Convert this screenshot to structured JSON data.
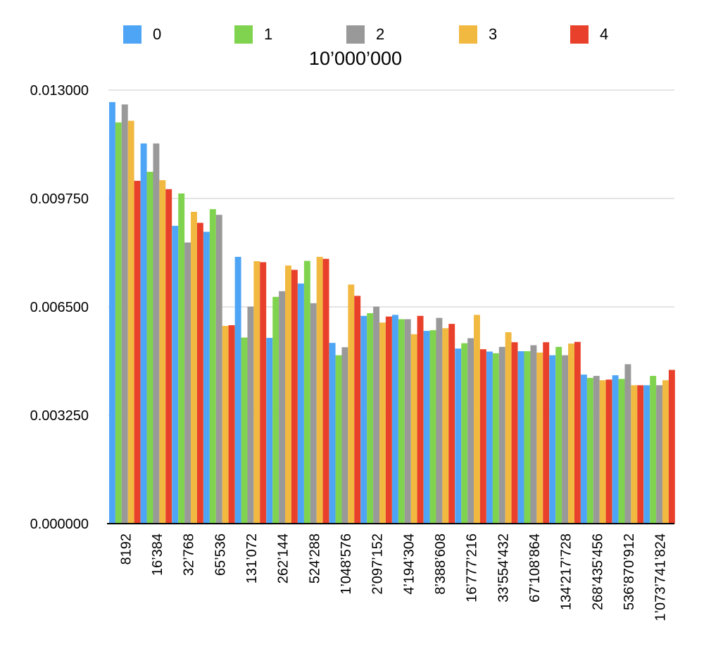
{
  "chart_data": {
    "type": "bar",
    "title": "10’000’000",
    "legend_position": "top",
    "grid": true,
    "ylim": [
      0,
      0.013
    ],
    "yticks": [
      "0.000000",
      "0.003250",
      "0.006500",
      "0.009750",
      "0.013000"
    ],
    "categories": [
      "8192",
      "16’384",
      "32’768",
      "65’536",
      "131’072",
      "262’144",
      "524’288",
      "1’048’576",
      "2’097’152",
      "4’194’304",
      "8’388’608",
      "16’777’216",
      "33’554’432",
      "67’108’864",
      "134’217’728",
      "268’435’456",
      "536’870’912",
      "1’073’741’824"
    ],
    "series": [
      {
        "name": "0",
        "color": "#4ea5f5",
        "values": [
          0.01264,
          0.0114,
          0.00893,
          0.00875,
          0.008,
          0.00557,
          0.0072,
          0.00542,
          0.00623,
          0.00626,
          0.00578,
          0.00525,
          0.00516,
          0.00517,
          0.00505,
          0.00447,
          0.00445,
          0.00415
        ]
      },
      {
        "name": "1",
        "color": "#7fd34e",
        "values": [
          0.01203,
          0.01055,
          0.0099,
          0.00943,
          0.00558,
          0.0068,
          0.00788,
          0.00505,
          0.00631,
          0.00613,
          0.0058,
          0.00541,
          0.00511,
          0.00517,
          0.0053,
          0.00437,
          0.00434,
          0.00443
        ]
      },
      {
        "name": "2",
        "color": "#999999",
        "values": [
          0.01257,
          0.0114,
          0.00843,
          0.00926,
          0.00651,
          0.00697,
          0.00661,
          0.00529,
          0.00651,
          0.00613,
          0.00617,
          0.00556,
          0.0053,
          0.00535,
          0.00505,
          0.00443,
          0.00478,
          0.00415
        ]
      },
      {
        "name": "3",
        "color": "#f2b941",
        "values": [
          0.01208,
          0.0103,
          0.00935,
          0.00593,
          0.00787,
          0.00774,
          0.008,
          0.00717,
          0.00603,
          0.00568,
          0.00586,
          0.00626,
          0.00574,
          0.00513,
          0.0054,
          0.0043,
          0.00415,
          0.0043
        ]
      },
      {
        "name": "4",
        "color": "#e8402a",
        "values": [
          0.01028,
          0.01003,
          0.00902,
          0.00595,
          0.00784,
          0.00761,
          0.00794,
          0.00683,
          0.00621,
          0.00623,
          0.00599,
          0.00523,
          0.00544,
          0.00544,
          0.00545,
          0.00432,
          0.00415,
          0.00461
        ]
      }
    ]
  }
}
